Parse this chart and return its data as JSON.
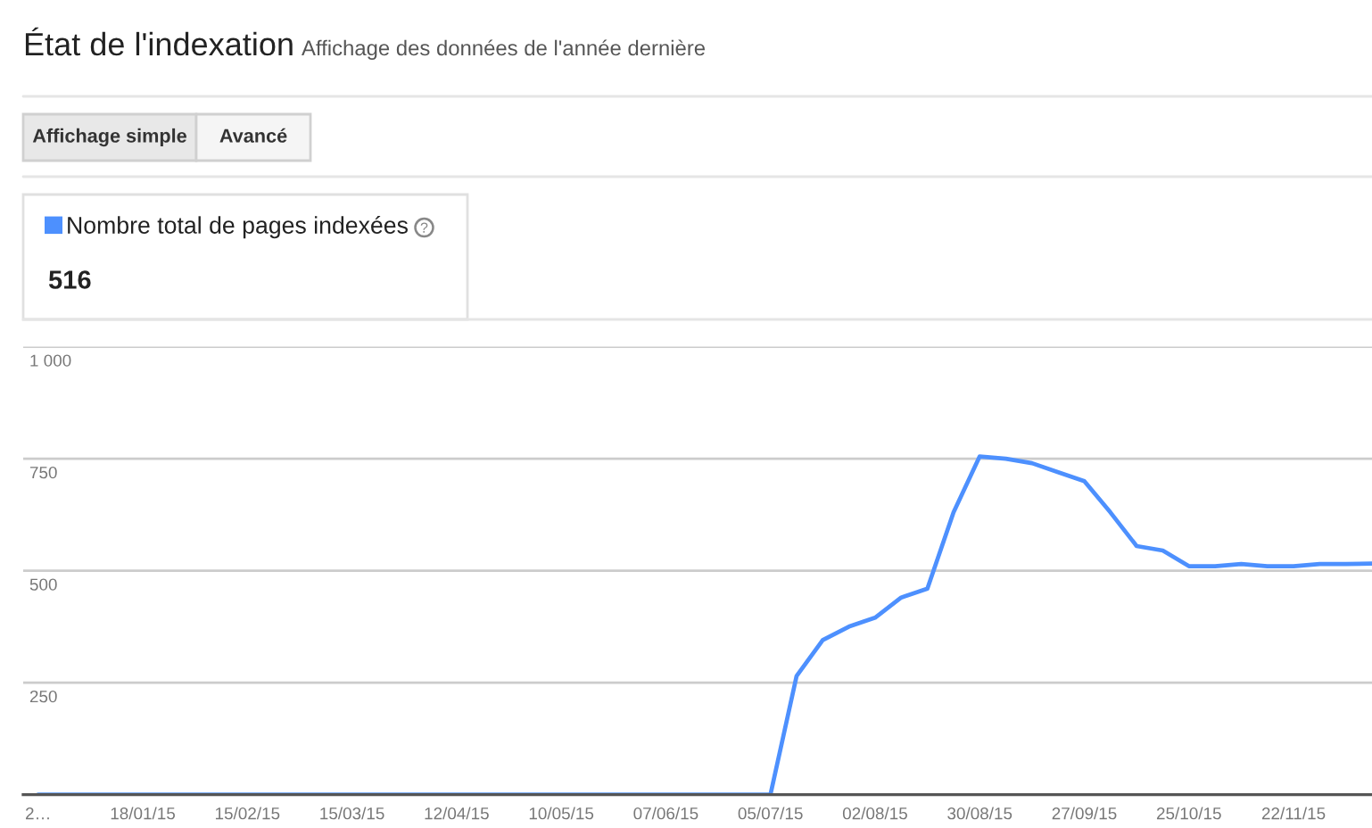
{
  "chart_data": {
    "type": "line",
    "title": "État de l'indexation",
    "subtitle": "Affichage des données de l'année dernière",
    "x": [
      "2014-12-21",
      "2015-07-05",
      "2015-07-12",
      "2015-07-19",
      "2015-07-26",
      "2015-08-02",
      "2015-08-09",
      "2015-08-16",
      "2015-08-23",
      "2015-08-30",
      "2015-09-06",
      "2015-09-13",
      "2015-09-20",
      "2015-09-27",
      "2015-10-04",
      "2015-10-11",
      "2015-10-18",
      "2015-10-25",
      "2015-11-01",
      "2015-11-08",
      "2015-11-15",
      "2015-11-22",
      "2015-11-29",
      "2015-12-06",
      "2015-12-13"
    ],
    "series": [
      {
        "name": "Nombre total de pages indexées",
        "color": "#4d90fe",
        "values": [
          0,
          0,
          265,
          345,
          375,
          395,
          440,
          460,
          630,
          755,
          750,
          740,
          720,
          700,
          630,
          555,
          545,
          510,
          510,
          515,
          510,
          510,
          515,
          515,
          516
        ]
      }
    ],
    "xlim": [
      "2014-12-17",
      "2015-12-13"
    ],
    "xticks": [
      {
        "value": "2014-12-21",
        "label": "2…"
      },
      {
        "value": "2015-01-18",
        "label": "18/01/15"
      },
      {
        "value": "2015-02-15",
        "label": "15/02/15"
      },
      {
        "value": "2015-03-15",
        "label": "15/03/15"
      },
      {
        "value": "2015-04-12",
        "label": "12/04/15"
      },
      {
        "value": "2015-05-10",
        "label": "10/05/15"
      },
      {
        "value": "2015-06-07",
        "label": "07/06/15"
      },
      {
        "value": "2015-07-05",
        "label": "05/07/15"
      },
      {
        "value": "2015-08-02",
        "label": "02/08/15"
      },
      {
        "value": "2015-08-30",
        "label": "30/08/15"
      },
      {
        "value": "2015-09-27",
        "label": "27/09/15"
      },
      {
        "value": "2015-10-25",
        "label": "25/10/15"
      },
      {
        "value": "2015-11-22",
        "label": "22/11/15"
      }
    ],
    "ylim": [
      0,
      1000
    ],
    "yticks": [
      250,
      500,
      750,
      {
        "value": 1000,
        "label": "1 000"
      }
    ],
    "grid": "y",
    "legend": "top left",
    "marker": "none",
    "line_style": "solid",
    "annotations": [
      "Affichage simple",
      "Avancé",
      "516"
    ]
  }
}
